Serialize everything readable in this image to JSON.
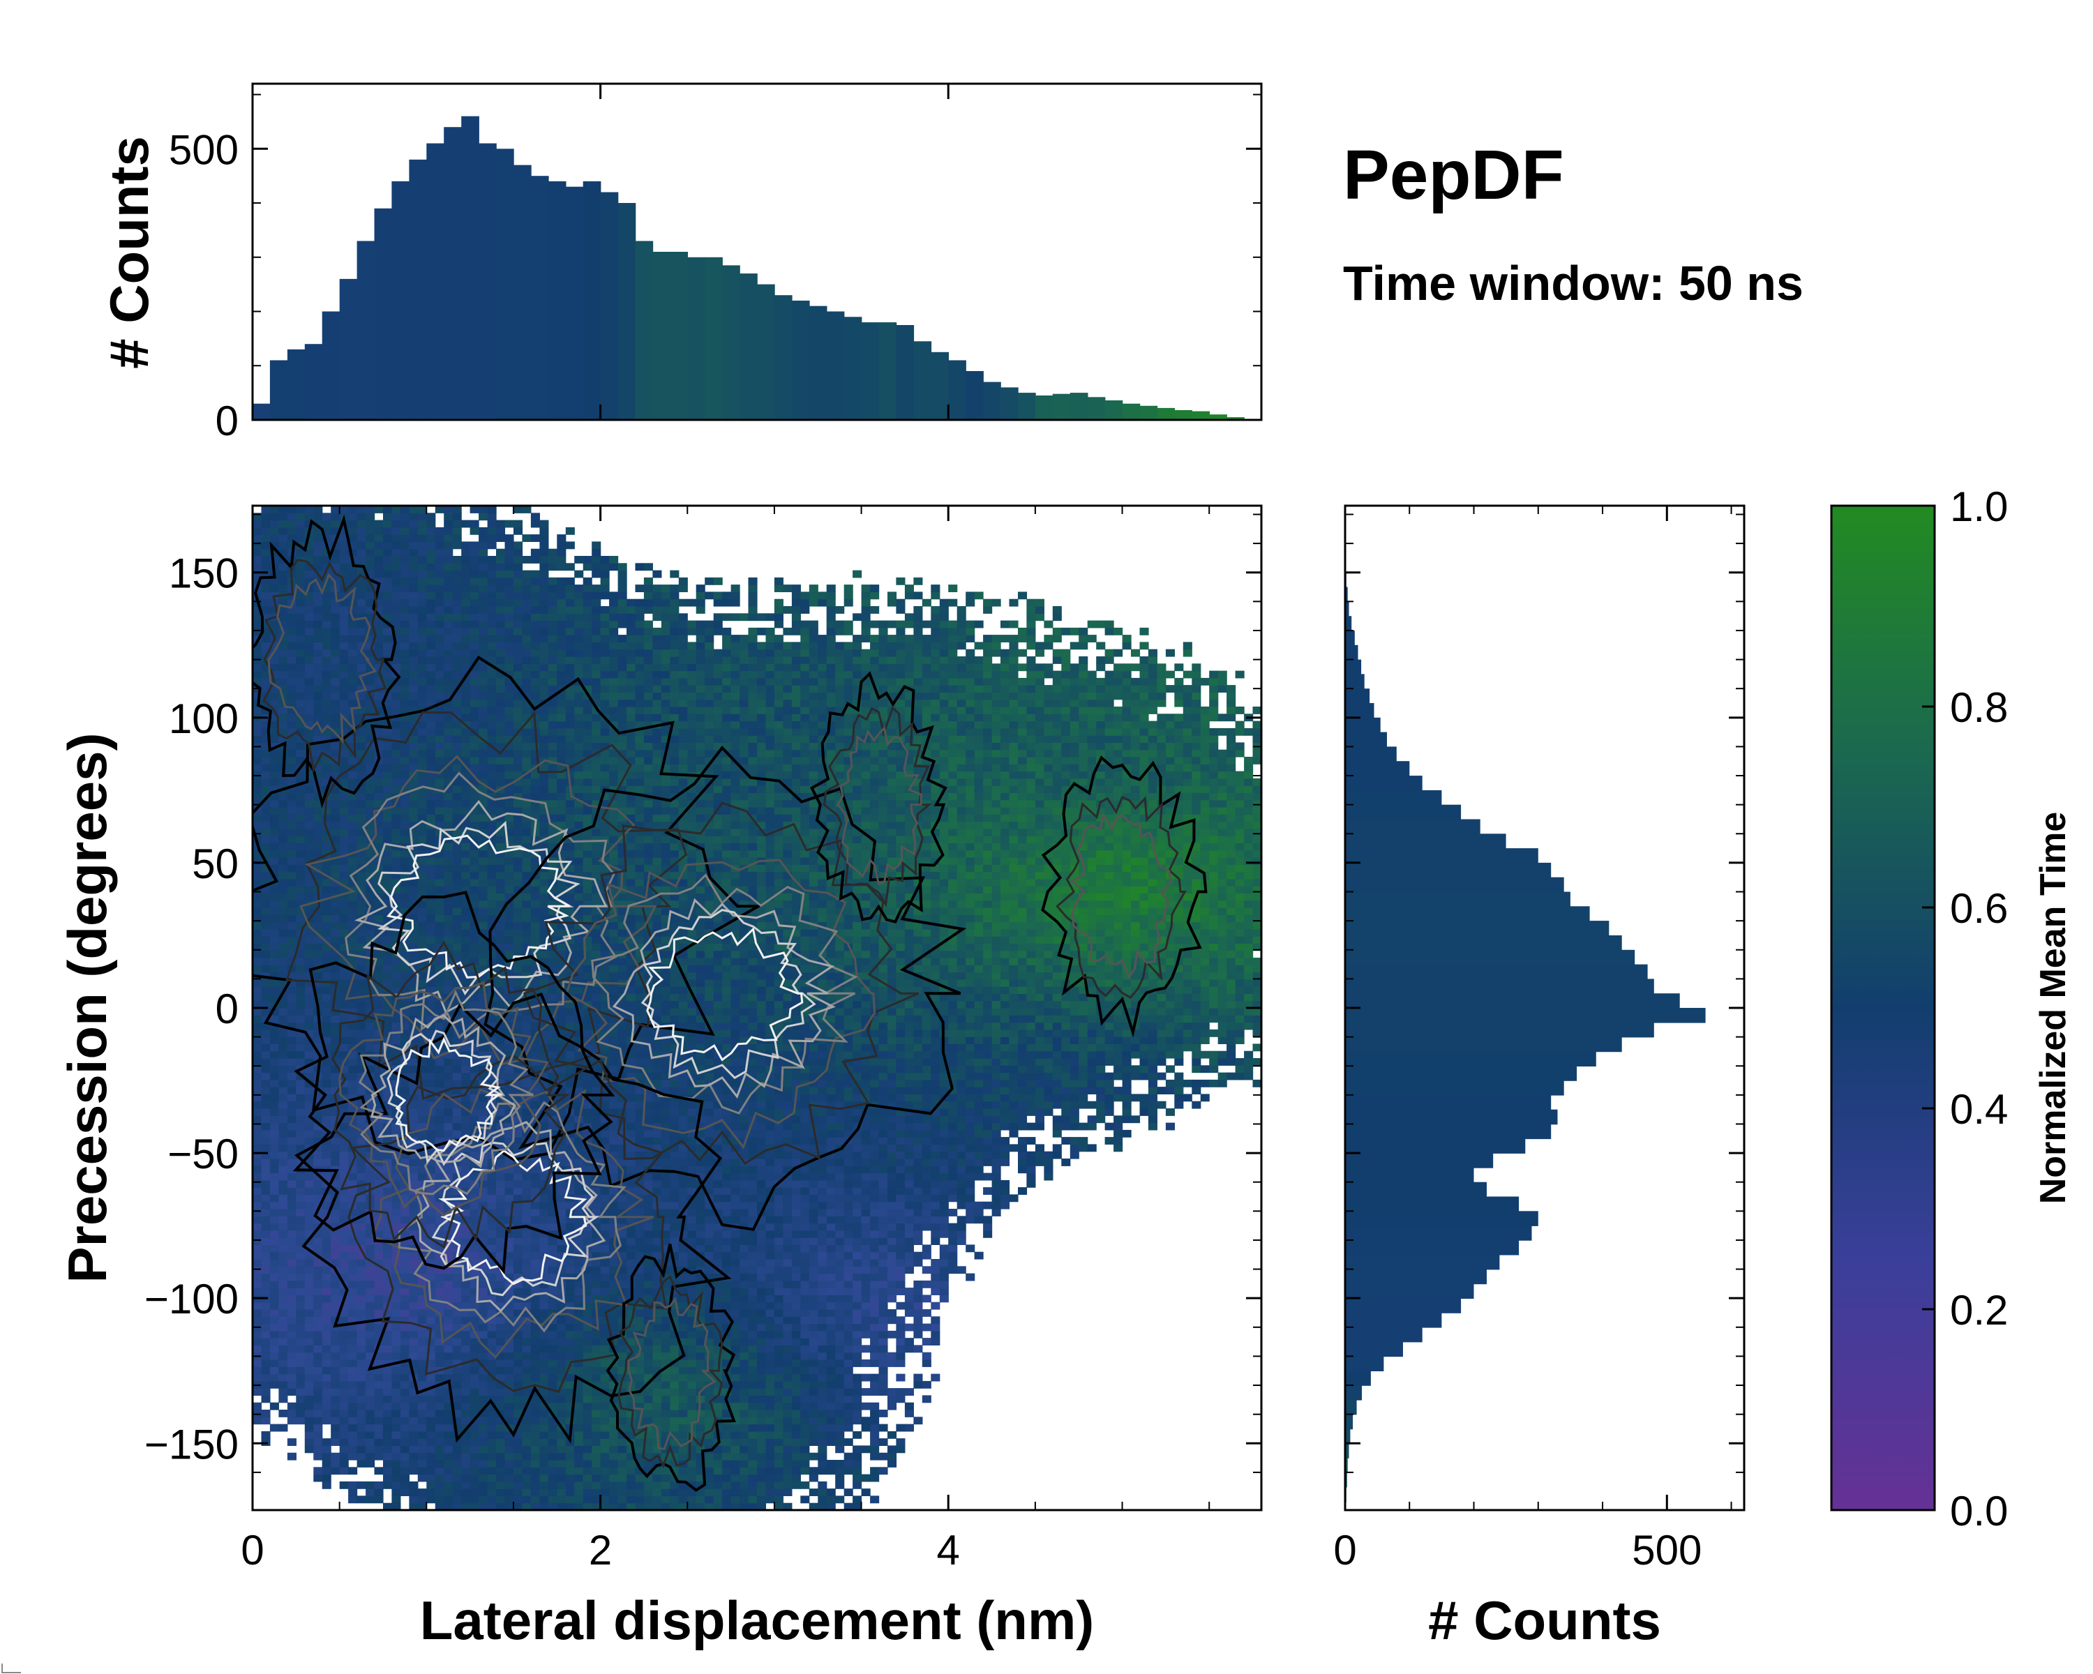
{
  "title": "PepDF",
  "subtitle": "Time window: 50 ns",
  "chart_data": [
    {
      "name": "joint",
      "type": "heatmap",
      "xlabel": "Lateral displacement (nm)",
      "ylabel": "Precession (degrees)",
      "xlim": [
        0,
        5.8
      ],
      "ylim": [
        -173,
        173
      ],
      "xticks": [
        0,
        2,
        4
      ],
      "yticks": [
        -150,
        -100,
        -50,
        0,
        50,
        100,
        150
      ],
      "xtick_labels": [
        "0",
        "2",
        "4"
      ],
      "ytick_labels": [
        "−150",
        "−100",
        "−50",
        "0",
        "50",
        "100",
        "150"
      ],
      "density_peaks": [
        {
          "x": 1.3,
          "y": 35,
          "weight": 1.0
        },
        {
          "x": 2.7,
          "y": 5,
          "weight": 0.9
        },
        {
          "x": 1.5,
          "y": -72,
          "weight": 0.8
        },
        {
          "x": 1.1,
          "y": -30,
          "weight": 0.6
        },
        {
          "x": 0.4,
          "y": 120,
          "weight": 0.3
        },
        {
          "x": 3.6,
          "y": 70,
          "weight": 0.25
        },
        {
          "x": 5.0,
          "y": 40,
          "weight": 0.3
        },
        {
          "x": 2.4,
          "y": -125,
          "weight": 0.25
        }
      ],
      "mean_time_regions": [
        {
          "x": 5.0,
          "y": 45,
          "value": 0.95
        },
        {
          "x": 4.9,
          "y": 80,
          "value": 0.65
        },
        {
          "x": 4.8,
          "y": -40,
          "value": 0.5
        },
        {
          "x": 2.4,
          "y": -130,
          "value": 0.7
        },
        {
          "x": 0.5,
          "y": 120,
          "value": 0.45
        },
        {
          "x": 0.9,
          "y": -90,
          "value": 0.2
        },
        {
          "x": 3.6,
          "y": -100,
          "value": 0.25
        },
        {
          "x": 2.6,
          "y": 90,
          "value": 0.6
        }
      ]
    },
    {
      "name": "marginal_x",
      "type": "bar",
      "ylabel": "# Counts",
      "ylim": [
        0,
        620
      ],
      "yticks": [
        0,
        500
      ],
      "ytick_labels": [
        "0",
        "500"
      ],
      "x": [
        0.05,
        0.15,
        0.25,
        0.35,
        0.45,
        0.55,
        0.65,
        0.75,
        0.85,
        0.95,
        1.05,
        1.15,
        1.25,
        1.35,
        1.45,
        1.55,
        1.65,
        1.75,
        1.85,
        1.95,
        2.05,
        2.15,
        2.25,
        2.35,
        2.45,
        2.55,
        2.65,
        2.75,
        2.85,
        2.95,
        3.05,
        3.15,
        3.25,
        3.35,
        3.45,
        3.55,
        3.65,
        3.75,
        3.85,
        3.95,
        4.05,
        4.15,
        4.25,
        4.35,
        4.45,
        4.55,
        4.65,
        4.75,
        4.85,
        4.95,
        5.05,
        5.15,
        5.25,
        5.35,
        5.45,
        5.55,
        5.65
      ],
      "values": [
        30,
        110,
        130,
        140,
        200,
        260,
        330,
        390,
        440,
        480,
        510,
        540,
        560,
        510,
        500,
        470,
        450,
        440,
        430,
        440,
        420,
        400,
        330,
        310,
        310,
        300,
        300,
        285,
        270,
        250,
        230,
        220,
        210,
        200,
        190,
        180,
        180,
        175,
        145,
        125,
        110,
        90,
        70,
        60,
        50,
        45,
        48,
        50,
        42,
        36,
        30,
        26,
        22,
        18,
        16,
        10,
        5
      ],
      "mean_time": [
        0.45,
        0.48,
        0.48,
        0.47,
        0.47,
        0.46,
        0.46,
        0.47,
        0.47,
        0.47,
        0.47,
        0.47,
        0.47,
        0.47,
        0.48,
        0.48,
        0.48,
        0.49,
        0.49,
        0.5,
        0.52,
        0.55,
        0.62,
        0.63,
        0.63,
        0.62,
        0.64,
        0.62,
        0.6,
        0.6,
        0.58,
        0.56,
        0.55,
        0.55,
        0.56,
        0.57,
        0.6,
        0.55,
        0.58,
        0.58,
        0.55,
        0.52,
        0.55,
        0.58,
        0.62,
        0.7,
        0.72,
        0.7,
        0.72,
        0.75,
        0.8,
        0.82,
        0.88,
        0.9,
        0.92,
        0.95,
        0.95
      ]
    },
    {
      "name": "marginal_y",
      "type": "bar",
      "orientation": "horizontal",
      "xlabel": "# Counts",
      "xlim": [
        0,
        620
      ],
      "xticks": [
        0,
        500
      ],
      "xtick_labels": [
        "0",
        "500"
      ],
      "y": [
        -167.5,
        -162.5,
        -157.5,
        -152.5,
        -147.5,
        -142.5,
        -137.5,
        -132.5,
        -127.5,
        -122.5,
        -117.5,
        -112.5,
        -107.5,
        -102.5,
        -97.5,
        -92.5,
        -87.5,
        -82.5,
        -77.5,
        -72.5,
        -67.5,
        -62.5,
        -57.5,
        -52.5,
        -47.5,
        -42.5,
        -37.5,
        -32.5,
        -27.5,
        -22.5,
        -17.5,
        -12.5,
        -7.5,
        -2.5,
        2.5,
        7.5,
        12.5,
        17.5,
        22.5,
        27.5,
        32.5,
        37.5,
        42.5,
        47.5,
        52.5,
        57.5,
        62.5,
        67.5,
        72.5,
        77.5,
        82.5,
        87.5,
        92.5,
        97.5,
        102.5,
        107.5,
        112.5,
        117.5,
        122.5,
        127.5,
        132.5,
        137.5,
        142.5,
        147.5,
        152.5,
        157.5,
        162.5,
        167.5
      ],
      "values": [
        2,
        3,
        4,
        6,
        8,
        12,
        18,
        26,
        40,
        60,
        90,
        120,
        150,
        180,
        200,
        220,
        240,
        270,
        290,
        300,
        270,
        220,
        200,
        230,
        280,
        320,
        330,
        320,
        340,
        360,
        390,
        430,
        480,
        560,
        520,
        480,
        470,
        450,
        430,
        410,
        380,
        350,
        340,
        320,
        300,
        250,
        210,
        180,
        150,
        120,
        100,
        80,
        65,
        55,
        45,
        38,
        30,
        25,
        20,
        15,
        10,
        6,
        4,
        2,
        1,
        0,
        0,
        0
      ],
      "mean_time": [
        0.6,
        0.62,
        0.65,
        0.6,
        0.58,
        0.55,
        0.55,
        0.52,
        0.5,
        0.48,
        0.47,
        0.47,
        0.47,
        0.47,
        0.48,
        0.48,
        0.48,
        0.49,
        0.49,
        0.5,
        0.5,
        0.5,
        0.5,
        0.5,
        0.5,
        0.5,
        0.5,
        0.5,
        0.51,
        0.51,
        0.51,
        0.52,
        0.52,
        0.52,
        0.52,
        0.52,
        0.52,
        0.53,
        0.53,
        0.53,
        0.53,
        0.53,
        0.52,
        0.52,
        0.52,
        0.52,
        0.52,
        0.51,
        0.51,
        0.5,
        0.5,
        0.5,
        0.5,
        0.5,
        0.5,
        0.5,
        0.5,
        0.5,
        0.5,
        0.5,
        0.5,
        0.5,
        0.5,
        0.5,
        0.5,
        0.5,
        0.5,
        0.5
      ]
    },
    {
      "name": "colorbar",
      "type": "colorbar",
      "label": "Normalized Mean Time",
      "range": [
        0,
        1
      ],
      "ticks": [
        0.0,
        0.2,
        0.4,
        0.6,
        0.8,
        1.0
      ],
      "tick_labels": [
        "0.0",
        "0.2",
        "0.4",
        "0.6",
        "0.8",
        "1.0"
      ],
      "colormap": [
        "#653196",
        "#2e4a94",
        "#123e6e",
        "#1b6850",
        "#228b22"
      ]
    }
  ]
}
